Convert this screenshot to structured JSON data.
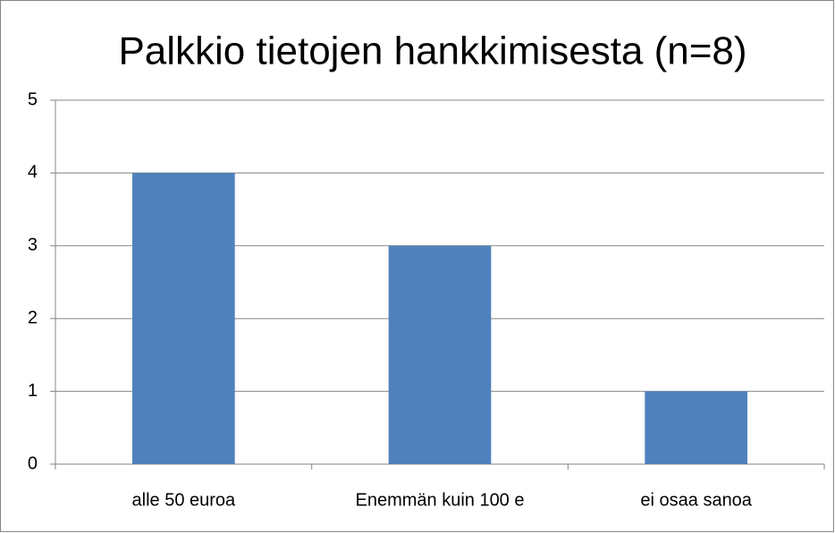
{
  "chart_data": {
    "type": "bar",
    "title": "Palkkio tietojen hankkimisesta (n=8)",
    "categories": [
      "alle 50 euroa",
      "Enemmän kuin 100 e",
      "ei osaa sanoa"
    ],
    "values": [
      4,
      3,
      1
    ],
    "color": "#4f81bd",
    "ylim": [
      0,
      5
    ],
    "yticks": [
      0,
      1,
      2,
      3,
      4,
      5
    ],
    "grid": true
  }
}
